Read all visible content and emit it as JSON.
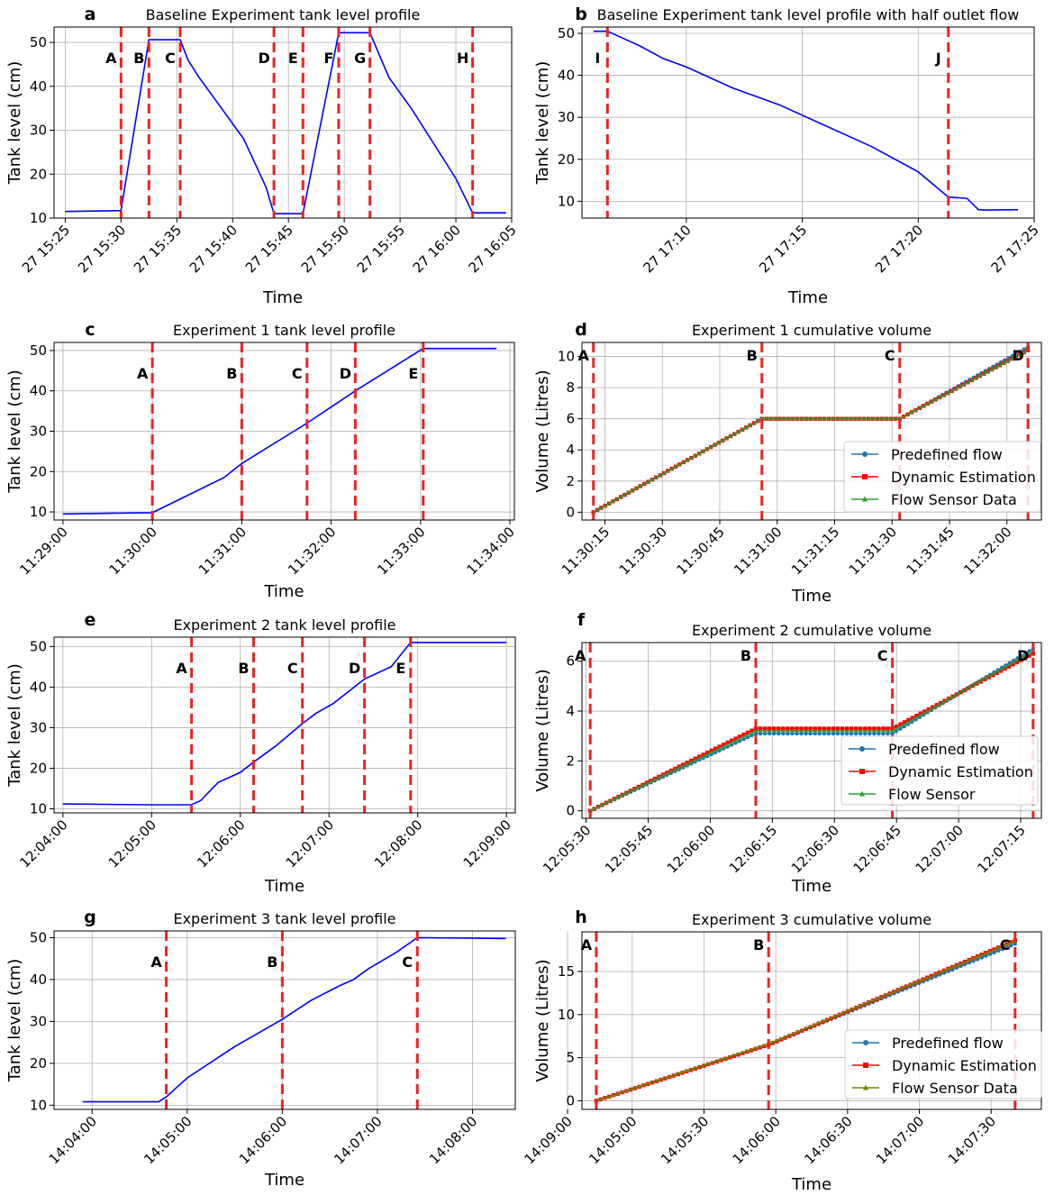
{
  "chart_data": [
    {
      "panel": "a",
      "type": "line",
      "title": "Baseline Experiment tank level profile",
      "xlabel": "Time",
      "ylabel": "Tank level (cm)",
      "xlim": [
        -1,
        40
      ],
      "ylim": [
        10,
        53.5
      ],
      "xticks": [
        0,
        5,
        10,
        15,
        20,
        25,
        30,
        35,
        40
      ],
      "xtick_labels": [
        "27 15:25",
        "27 15:30",
        "27 15:35",
        "27 15:40",
        "27 15:45",
        "27 15:50",
        "27 15:55",
        "27 16:00",
        "27 16:05"
      ],
      "yticks": [
        10,
        20,
        30,
        40,
        50
      ],
      "event_lines": [
        {
          "label": "A",
          "x": 5
        },
        {
          "label": "B",
          "x": 7.5
        },
        {
          "label": "C",
          "x": 10.3
        },
        {
          "label": "D",
          "x": 18.7
        },
        {
          "label": "E",
          "x": 21.3
        },
        {
          "label": "F",
          "x": 24.5
        },
        {
          "label": "G",
          "x": 27.3
        },
        {
          "label": "H",
          "x": 36.5
        }
      ],
      "series": [
        {
          "name": "Tank level",
          "color": "#0000ff",
          "x": [
            0,
            5,
            7.5,
            10.3,
            11,
            12,
            14,
            16,
            18,
            18.7,
            21.3,
            24.5,
            27.3,
            29,
            31,
            33,
            35,
            36.5,
            39.5
          ],
          "y": [
            11.5,
            11.7,
            50.6,
            50.6,
            46,
            42,
            35,
            28,
            17,
            11,
            11,
            52.2,
            52.2,
            42,
            35,
            27,
            19,
            11.2,
            11.2
          ]
        }
      ]
    },
    {
      "panel": "b",
      "type": "line",
      "title": "Baseline Experiment tank level profile with half outlet flow",
      "xlabel": "Time",
      "ylabel": "Tank level (cm)",
      "xlim": [
        -0.5,
        19
      ],
      "ylim": [
        6,
        51.5
      ],
      "xticks": [
        4,
        9,
        14,
        19
      ],
      "xtick_labels": [
        "27 17:10",
        "27 17:15",
        "27 17:20",
        "27 17:25"
      ],
      "yticks": [
        10,
        20,
        30,
        40,
        50
      ],
      "event_lines": [
        {
          "label": "I",
          "x": 0.6
        },
        {
          "label": "J",
          "x": 15.3
        }
      ],
      "series": [
        {
          "name": "Tank level",
          "color": "#0000ff",
          "x": [
            0,
            0.6,
            1,
            2,
            3,
            4,
            6,
            8,
            10,
            12,
            14,
            15.3,
            16.1,
            16.6,
            16.9,
            18.3
          ],
          "y": [
            50.5,
            50.5,
            49.5,
            47,
            44,
            42,
            37,
            33,
            28,
            23,
            17,
            11,
            10.7,
            8,
            7.9,
            8
          ]
        }
      ]
    },
    {
      "panel": "c",
      "type": "line",
      "title": "Experiment 1 tank level profile",
      "xlabel": "Time",
      "ylabel": "Tank level (cm)",
      "xlim": [
        -1.1,
        4.05
      ],
      "ylim": [
        8,
        52
      ],
      "xticks": [
        -1,
        0,
        1,
        2,
        3,
        4
      ],
      "xtick_labels": [
        "11:29:00",
        "11:30:00",
        "11:31:00",
        "11:32:00",
        "11:33:00",
        "11:34:00"
      ],
      "yticks": [
        10,
        20,
        30,
        40,
        50
      ],
      "event_lines": [
        {
          "label": "A",
          "x": 0
        },
        {
          "label": "B",
          "x": 1.0
        },
        {
          "label": "C",
          "x": 1.73
        },
        {
          "label": "D",
          "x": 2.27
        },
        {
          "label": "E",
          "x": 3.03
        }
      ],
      "series": [
        {
          "name": "Tank level",
          "color": "#0000ff",
          "x": [
            -1,
            0,
            0.8,
            1.0,
            1.73,
            2.27,
            3.03,
            3.85
          ],
          "y": [
            9.5,
            9.8,
            18.5,
            22,
            32,
            40,
            50.5,
            50.5
          ]
        }
      ]
    },
    {
      "panel": "d",
      "type": "line",
      "title": "Experiment 1 cumulative volume",
      "xlabel": "Time",
      "ylabel": "Volume (Litres)",
      "xlim": [
        9,
        129
      ],
      "ylim": [
        -0.5,
        10.9
      ],
      "xticks": [
        15,
        30,
        45,
        60,
        75,
        90,
        105,
        120
      ],
      "xtick_labels": [
        "11:30:15",
        "11:30:30",
        "11:30:45",
        "11:31:00",
        "11:31:15",
        "11:31:30",
        "11:31:45",
        "11:32:00"
      ],
      "yticks": [
        0,
        2,
        4,
        6,
        8,
        10
      ],
      "event_lines": [
        {
          "label": "A",
          "x": 12
        },
        {
          "label": "B",
          "x": 56
        },
        {
          "label": "C",
          "x": 92
        },
        {
          "label": "D",
          "x": 125.5
        }
      ],
      "legend": {
        "position": "lower-right",
        "entries": [
          "Predefined flow",
          "Dynamic Estimation",
          "Flow Sensor Data"
        ]
      },
      "series": [
        {
          "name": "Predefined flow",
          "color": "#1f77b4",
          "marker": "circle",
          "x": [
            12,
            56,
            92,
            125.5
          ],
          "y": [
            0,
            6,
            6,
            10.6
          ]
        },
        {
          "name": "Dynamic Estimation",
          "color": "#ff0000",
          "marker": "square",
          "x": [
            12,
            56,
            92,
            125.5
          ],
          "y": [
            0,
            6,
            6,
            10.4
          ]
        },
        {
          "name": "Flow Sensor Data",
          "color": "#2ca02c",
          "marker": "triangle",
          "x": [
            12,
            56,
            92,
            125.5
          ],
          "y": [
            0,
            6,
            6,
            10.4
          ]
        }
      ]
    },
    {
      "panel": "e",
      "type": "line",
      "title": "Experiment 2 tank level profile",
      "xlabel": "Time",
      "ylabel": "Tank level (cm)",
      "xlim": [
        -1.1,
        4.1
      ],
      "ylim": [
        9,
        52.3
      ],
      "xticks": [
        -1,
        0,
        1,
        2,
        3,
        4
      ],
      "xtick_labels": [
        "12:04:00",
        "12:05:00",
        "12:06:00",
        "12:07:00",
        "12:08:00",
        "12:09:00"
      ],
      "yticks": [
        10,
        20,
        30,
        40,
        50
      ],
      "event_lines": [
        {
          "label": "A",
          "x": 0.45
        },
        {
          "label": "B",
          "x": 1.15
        },
        {
          "label": "C",
          "x": 1.7
        },
        {
          "label": "D",
          "x": 2.4
        },
        {
          "label": "E",
          "x": 2.92
        }
      ],
      "series": [
        {
          "name": "Tank level",
          "color": "#0000ff",
          "x": [
            -1,
            0,
            0.45,
            0.55,
            0.75,
            1.0,
            1.15,
            1.4,
            1.7,
            1.85,
            2.05,
            2.4,
            2.7,
            2.92,
            4.0
          ],
          "y": [
            11.2,
            11,
            11,
            12,
            16.5,
            19,
            21.5,
            25.5,
            31,
            33.5,
            36,
            42,
            45,
            51,
            51
          ]
        }
      ]
    },
    {
      "panel": "f",
      "type": "line",
      "title": "Experiment 2 cumulative volume",
      "xlabel": "Time",
      "ylabel": "Volume (Litres)",
      "xlim": [
        -1,
        110
      ],
      "ylim": [
        -0.3,
        6.75
      ],
      "xticks": [
        0,
        15,
        30,
        45,
        60,
        75,
        90,
        105
      ],
      "xtick_labels": [
        "12:05:30",
        "12:05:45",
        "12:06:00",
        "12:06:15",
        "12:06:30",
        "12:06:45",
        "12:07:00",
        "12:07:15"
      ],
      "yticks": [
        0,
        2,
        4,
        6
      ],
      "event_lines": [
        {
          "label": "A",
          "x": 1
        },
        {
          "label": "B",
          "x": 41
        },
        {
          "label": "C",
          "x": 74
        },
        {
          "label": "D",
          "x": 108
        }
      ],
      "legend": {
        "position": "lower-right",
        "entries": [
          "Predefined flow",
          "Dynamic Estimation",
          "Flow Sensor"
        ]
      },
      "series": [
        {
          "name": "Predefined flow",
          "color": "#1f77b4",
          "marker": "circle",
          "x": [
            1,
            41,
            74,
            108
          ],
          "y": [
            0,
            3.1,
            3.1,
            6.5
          ]
        },
        {
          "name": "Dynamic Estimation",
          "color": "#ff0000",
          "marker": "square",
          "x": [
            1,
            41,
            74,
            108
          ],
          "y": [
            0,
            3.3,
            3.3,
            6.3
          ]
        },
        {
          "name": "Flow Sensor",
          "color": "#2ca02c",
          "marker": "triangle",
          "x": [
            1,
            41,
            74,
            108
          ],
          "y": [
            0,
            3.2,
            3.2,
            6.4
          ]
        }
      ]
    },
    {
      "panel": "g",
      "type": "line",
      "title": "Experiment 3 tank level profile",
      "xlabel": "Time",
      "ylabel": "Tank level (cm)",
      "xlim": [
        -0.4,
        4.45
      ],
      "ylim": [
        9,
        51.6
      ],
      "xticks": [
        0,
        1,
        2,
        3,
        4,
        5
      ],
      "xtick_labels": [
        "14:04:00",
        "14:05:00",
        "14:06:00",
        "14:07:00",
        "14:08:00",
        "14:09:00"
      ],
      "yticks": [
        10,
        20,
        30,
        40,
        50
      ],
      "event_lines": [
        {
          "label": "A",
          "x": 0.78
        },
        {
          "label": "B",
          "x": 2.0
        },
        {
          "label": "C",
          "x": 3.42
        }
      ],
      "series": [
        {
          "name": "Tank level",
          "color": "#0000ff",
          "x": [
            -0.1,
            0.7,
            0.78,
            1.0,
            1.5,
            2.0,
            2.3,
            2.6,
            2.75,
            2.9,
            3.2,
            3.42,
            4.35
          ],
          "y": [
            10.8,
            10.8,
            12,
            16.5,
            24,
            30.5,
            35,
            38.5,
            40,
            42.5,
            46.5,
            50,
            49.8
          ]
        }
      ]
    },
    {
      "panel": "h",
      "type": "line",
      "title": "Experiment 3 cumulative volume",
      "xlabel": "Time",
      "ylabel": "Volume (Litres)",
      "xlim": [
        -21,
        171
      ],
      "ylim": [
        -1,
        19.6
      ],
      "xticks": [
        0,
        30,
        60,
        90,
        120,
        150
      ],
      "xtick_labels": [
        "14:05:00",
        "14:05:30",
        "14:06:00",
        "14:06:30",
        "14:07:00",
        "14:07:30"
      ],
      "yticks": [
        0,
        5,
        10,
        15
      ],
      "event_lines": [
        {
          "label": "A",
          "x": -15
        },
        {
          "label": "B",
          "x": 57
        },
        {
          "label": "C",
          "x": 160
        }
      ],
      "legend": {
        "position": "lower-right",
        "entries": [
          "Predefined flow",
          "Dynamic Estimation",
          "Flow Sensor Data"
        ]
      },
      "series": [
        {
          "name": "Predefined flow",
          "color": "#1f77b4",
          "marker": "circle",
          "x": [
            -15,
            57,
            160
          ],
          "y": [
            0,
            6.5,
            18.2
          ]
        },
        {
          "name": "Dynamic Estimation",
          "color": "#ff0000",
          "marker": "square",
          "x": [
            -15,
            57,
            160
          ],
          "y": [
            0,
            6.5,
            18.6
          ]
        },
        {
          "name": "Flow Sensor Data",
          "color": "#6a8a00",
          "marker": "triangle",
          "x": [
            -15,
            57,
            160
          ],
          "y": [
            0,
            6.6,
            18.5
          ]
        }
      ]
    }
  ]
}
